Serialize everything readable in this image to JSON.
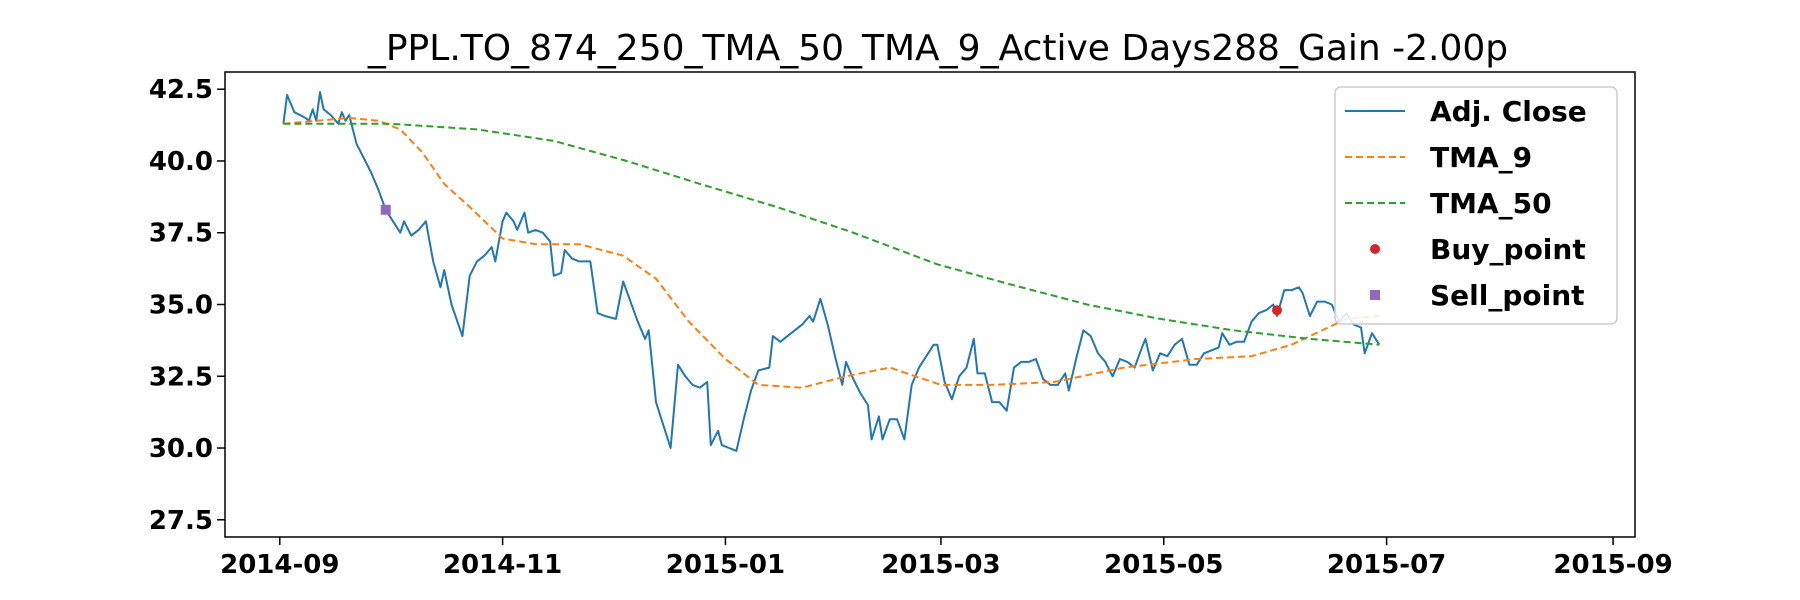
{
  "chart_data": {
    "type": "line",
    "title": "_PPL.TO_874_250_TMA_50_TMA_9_Active Days288_Gain  -2.00p",
    "xlabel": "",
    "ylabel": "",
    "x_range": [
      "2014-08-17",
      "2015-09-07"
    ],
    "ylim": [
      26.9,
      43.1
    ],
    "x_ticks": [
      "2014-09-01",
      "2014-11-01",
      "2015-01-01",
      "2015-03-01",
      "2015-05-01",
      "2015-07-01",
      "2015-09-01"
    ],
    "x_tick_labels": [
      "2014-09",
      "2014-11",
      "2015-01",
      "2015-03",
      "2015-05",
      "2015-07",
      "2015-09"
    ],
    "y_ticks": [
      27.5,
      30.0,
      32.5,
      35.0,
      37.5,
      40.0,
      42.5
    ],
    "y_tick_labels": [
      "27.5",
      "30.0",
      "32.5",
      "35.0",
      "37.5",
      "40.0",
      "42.5"
    ],
    "grid": false,
    "legend_position": "top-right",
    "series": [
      {
        "name": "Adj. Close",
        "color": "#1f77b4",
        "style": "solid",
        "points": [
          [
            "2014-09-02",
            41.3
          ],
          [
            "2014-09-03",
            42.3
          ],
          [
            "2014-09-05",
            41.7
          ],
          [
            "2014-09-08",
            41.5
          ],
          [
            "2014-09-09",
            41.4
          ],
          [
            "2014-09-10",
            41.8
          ],
          [
            "2014-09-11",
            41.4
          ],
          [
            "2014-09-12",
            42.4
          ],
          [
            "2014-09-13",
            41.8
          ],
          [
            "2014-09-15",
            41.6
          ],
          [
            "2014-09-17",
            41.3
          ],
          [
            "2014-09-18",
            41.7
          ],
          [
            "2014-09-19",
            41.4
          ],
          [
            "2014-09-20",
            41.6
          ],
          [
            "2014-09-22",
            40.6
          ],
          [
            "2014-09-24",
            40.1
          ],
          [
            "2014-09-26",
            39.6
          ],
          [
            "2014-09-28",
            39.0
          ],
          [
            "2014-09-30",
            38.3
          ],
          [
            "2014-10-02",
            37.9
          ],
          [
            "2014-10-04",
            37.5
          ],
          [
            "2014-10-05",
            37.9
          ],
          [
            "2014-10-07",
            37.4
          ],
          [
            "2014-10-09",
            37.6
          ],
          [
            "2014-10-11",
            37.9
          ],
          [
            "2014-10-13",
            36.5
          ],
          [
            "2014-10-15",
            35.6
          ],
          [
            "2014-10-16",
            36.2
          ],
          [
            "2014-10-18",
            35.0
          ],
          [
            "2014-10-21",
            33.9
          ],
          [
            "2014-10-23",
            36.0
          ],
          [
            "2014-10-25",
            36.5
          ],
          [
            "2014-10-27",
            36.7
          ],
          [
            "2014-10-29",
            37.0
          ],
          [
            "2014-10-30",
            36.5
          ],
          [
            "2014-11-01",
            37.9
          ],
          [
            "2014-11-02",
            38.2
          ],
          [
            "2014-11-04",
            37.9
          ],
          [
            "2014-11-05",
            37.6
          ],
          [
            "2014-11-07",
            38.2
          ],
          [
            "2014-11-08",
            37.5
          ],
          [
            "2014-11-10",
            37.6
          ],
          [
            "2014-11-12",
            37.5
          ],
          [
            "2014-11-14",
            37.2
          ],
          [
            "2014-11-15",
            36.0
          ],
          [
            "2014-11-17",
            36.1
          ],
          [
            "2014-11-18",
            36.9
          ],
          [
            "2014-11-20",
            36.6
          ],
          [
            "2014-11-22",
            36.5
          ],
          [
            "2014-11-25",
            36.5
          ],
          [
            "2014-11-27",
            34.7
          ],
          [
            "2014-11-29",
            34.6
          ],
          [
            "2014-12-02",
            34.5
          ],
          [
            "2014-12-04",
            35.8
          ],
          [
            "2014-12-06",
            35.1
          ],
          [
            "2014-12-08",
            34.4
          ],
          [
            "2014-12-10",
            33.8
          ],
          [
            "2014-12-11",
            34.1
          ],
          [
            "2014-12-13",
            31.6
          ],
          [
            "2014-12-15",
            30.8
          ],
          [
            "2014-12-17",
            30.0
          ],
          [
            "2014-12-19",
            32.9
          ],
          [
            "2014-12-21",
            32.5
          ],
          [
            "2014-12-23",
            32.2
          ],
          [
            "2014-12-25",
            32.1
          ],
          [
            "2014-12-27",
            32.3
          ],
          [
            "2014-12-28",
            30.1
          ],
          [
            "2014-12-30",
            30.6
          ],
          [
            "2014-12-31",
            30.1
          ],
          [
            "2015-01-02",
            30.0
          ],
          [
            "2015-01-04",
            29.9
          ],
          [
            "2015-01-06",
            31.0
          ],
          [
            "2015-01-08",
            32.0
          ],
          [
            "2015-01-10",
            32.7
          ],
          [
            "2015-01-13",
            32.8
          ],
          [
            "2015-01-14",
            33.9
          ],
          [
            "2015-01-16",
            33.7
          ],
          [
            "2015-01-18",
            33.9
          ],
          [
            "2015-01-20",
            34.1
          ],
          [
            "2015-01-22",
            34.3
          ],
          [
            "2015-01-24",
            34.6
          ],
          [
            "2015-01-25",
            34.4
          ],
          [
            "2015-01-27",
            35.2
          ],
          [
            "2015-01-29",
            34.3
          ],
          [
            "2015-01-31",
            33.2
          ],
          [
            "2015-02-02",
            32.2
          ],
          [
            "2015-02-03",
            33.0
          ],
          [
            "2015-02-05",
            32.4
          ],
          [
            "2015-02-07",
            31.9
          ],
          [
            "2015-02-09",
            31.5
          ],
          [
            "2015-02-10",
            30.3
          ],
          [
            "2015-02-12",
            31.1
          ],
          [
            "2015-02-13",
            30.3
          ],
          [
            "2015-02-15",
            31.0
          ],
          [
            "2015-02-17",
            31.0
          ],
          [
            "2015-02-19",
            30.3
          ],
          [
            "2015-02-21",
            32.2
          ],
          [
            "2015-02-23",
            32.8
          ],
          [
            "2015-02-25",
            33.2
          ],
          [
            "2015-02-27",
            33.6
          ],
          [
            "2015-02-28",
            33.6
          ],
          [
            "2015-03-02",
            32.3
          ],
          [
            "2015-03-04",
            31.7
          ],
          [
            "2015-03-06",
            32.5
          ],
          [
            "2015-03-08",
            32.8
          ],
          [
            "2015-03-10",
            33.8
          ],
          [
            "2015-03-11",
            32.6
          ],
          [
            "2015-03-13",
            32.6
          ],
          [
            "2015-03-15",
            31.6
          ],
          [
            "2015-03-17",
            31.6
          ],
          [
            "2015-03-19",
            31.3
          ],
          [
            "2015-03-21",
            32.8
          ],
          [
            "2015-03-23",
            33.0
          ],
          [
            "2015-03-25",
            33.0
          ],
          [
            "2015-03-27",
            33.1
          ],
          [
            "2015-03-29",
            32.4
          ],
          [
            "2015-03-31",
            32.2
          ],
          [
            "2015-04-02",
            32.2
          ],
          [
            "2015-04-04",
            32.6
          ],
          [
            "2015-04-05",
            32.0
          ],
          [
            "2015-04-07",
            33.1
          ],
          [
            "2015-04-09",
            34.1
          ],
          [
            "2015-04-11",
            33.9
          ],
          [
            "2015-04-13",
            33.3
          ],
          [
            "2015-04-15",
            33.0
          ],
          [
            "2015-04-17",
            32.5
          ],
          [
            "2015-04-19",
            33.1
          ],
          [
            "2015-04-21",
            33.0
          ],
          [
            "2015-04-23",
            32.8
          ],
          [
            "2015-04-25",
            33.5
          ],
          [
            "2015-04-26",
            33.8
          ],
          [
            "2015-04-28",
            32.7
          ],
          [
            "2015-04-30",
            33.3
          ],
          [
            "2015-05-02",
            33.2
          ],
          [
            "2015-05-04",
            33.6
          ],
          [
            "2015-05-06",
            33.8
          ],
          [
            "2015-05-08",
            32.9
          ],
          [
            "2015-05-10",
            32.9
          ],
          [
            "2015-05-12",
            33.3
          ],
          [
            "2015-05-14",
            33.4
          ],
          [
            "2015-05-16",
            33.5
          ],
          [
            "2015-05-17",
            34.0
          ],
          [
            "2015-05-19",
            33.6
          ],
          [
            "2015-05-21",
            33.7
          ],
          [
            "2015-05-23",
            33.7
          ],
          [
            "2015-05-25",
            34.4
          ],
          [
            "2015-05-27",
            34.7
          ],
          [
            "2015-05-29",
            34.8
          ],
          [
            "2015-05-31",
            35.0
          ],
          [
            "2015-06-01",
            34.6
          ],
          [
            "2015-06-03",
            35.5
          ],
          [
            "2015-06-05",
            35.5
          ],
          [
            "2015-06-07",
            35.6
          ],
          [
            "2015-06-08",
            35.4
          ],
          [
            "2015-06-10",
            34.6
          ],
          [
            "2015-06-12",
            35.1
          ],
          [
            "2015-06-14",
            35.1
          ],
          [
            "2015-06-16",
            35.0
          ],
          [
            "2015-06-18",
            34.4
          ],
          [
            "2015-06-20",
            34.7
          ],
          [
            "2015-06-22",
            34.3
          ],
          [
            "2015-06-24",
            34.2
          ],
          [
            "2015-06-25",
            33.3
          ],
          [
            "2015-06-27",
            34.0
          ],
          [
            "2015-06-29",
            33.6
          ]
        ]
      },
      {
        "name": "TMA_9",
        "color": "#ff7f0e",
        "style": "dashed",
        "points": [
          [
            "2014-09-02",
            41.3
          ],
          [
            "2014-09-20",
            41.5
          ],
          [
            "2014-09-28",
            41.4
          ],
          [
            "2014-10-04",
            41.1
          ],
          [
            "2014-10-10",
            40.3
          ],
          [
            "2014-10-16",
            39.2
          ],
          [
            "2014-10-23",
            38.4
          ],
          [
            "2014-11-01",
            37.3
          ],
          [
            "2014-11-10",
            37.1
          ],
          [
            "2014-11-22",
            37.1
          ],
          [
            "2014-12-04",
            36.7
          ],
          [
            "2014-12-13",
            35.9
          ],
          [
            "2014-12-22",
            34.4
          ],
          [
            "2015-01-01",
            33.1
          ],
          [
            "2015-01-10",
            32.2
          ],
          [
            "2015-01-22",
            32.1
          ],
          [
            "2015-02-03",
            32.5
          ],
          [
            "2015-02-15",
            32.8
          ],
          [
            "2015-03-01",
            32.2
          ],
          [
            "2015-03-15",
            32.2
          ],
          [
            "2015-04-01",
            32.3
          ],
          [
            "2015-04-20",
            32.8
          ],
          [
            "2015-05-10",
            33.1
          ],
          [
            "2015-05-25",
            33.2
          ],
          [
            "2015-06-05",
            33.6
          ],
          [
            "2015-06-20",
            34.5
          ],
          [
            "2015-06-29",
            34.6
          ]
        ]
      },
      {
        "name": "TMA_50",
        "color": "#2ca02c",
        "style": "dashed",
        "points": [
          [
            "2014-09-02",
            41.3
          ],
          [
            "2014-10-01",
            41.3
          ],
          [
            "2014-10-25",
            41.1
          ],
          [
            "2014-11-15",
            40.7
          ],
          [
            "2014-12-05",
            40.0
          ],
          [
            "2014-12-25",
            39.2
          ],
          [
            "2015-01-15",
            38.4
          ],
          [
            "2015-02-05",
            37.5
          ],
          [
            "2015-02-28",
            36.4
          ],
          [
            "2015-03-20",
            35.7
          ],
          [
            "2015-04-10",
            35.0
          ],
          [
            "2015-04-30",
            34.5
          ],
          [
            "2015-05-20",
            34.1
          ],
          [
            "2015-06-10",
            33.8
          ],
          [
            "2015-06-29",
            33.6
          ]
        ]
      }
    ],
    "buy_points": {
      "name": "Buy_point",
      "color": "#d62728",
      "points": [
        [
          "2015-06-01",
          34.8
        ]
      ]
    },
    "sell_points": {
      "name": "Sell_point",
      "color": "#9467bd",
      "points": [
        [
          "2014-09-30",
          38.3
        ]
      ]
    }
  }
}
